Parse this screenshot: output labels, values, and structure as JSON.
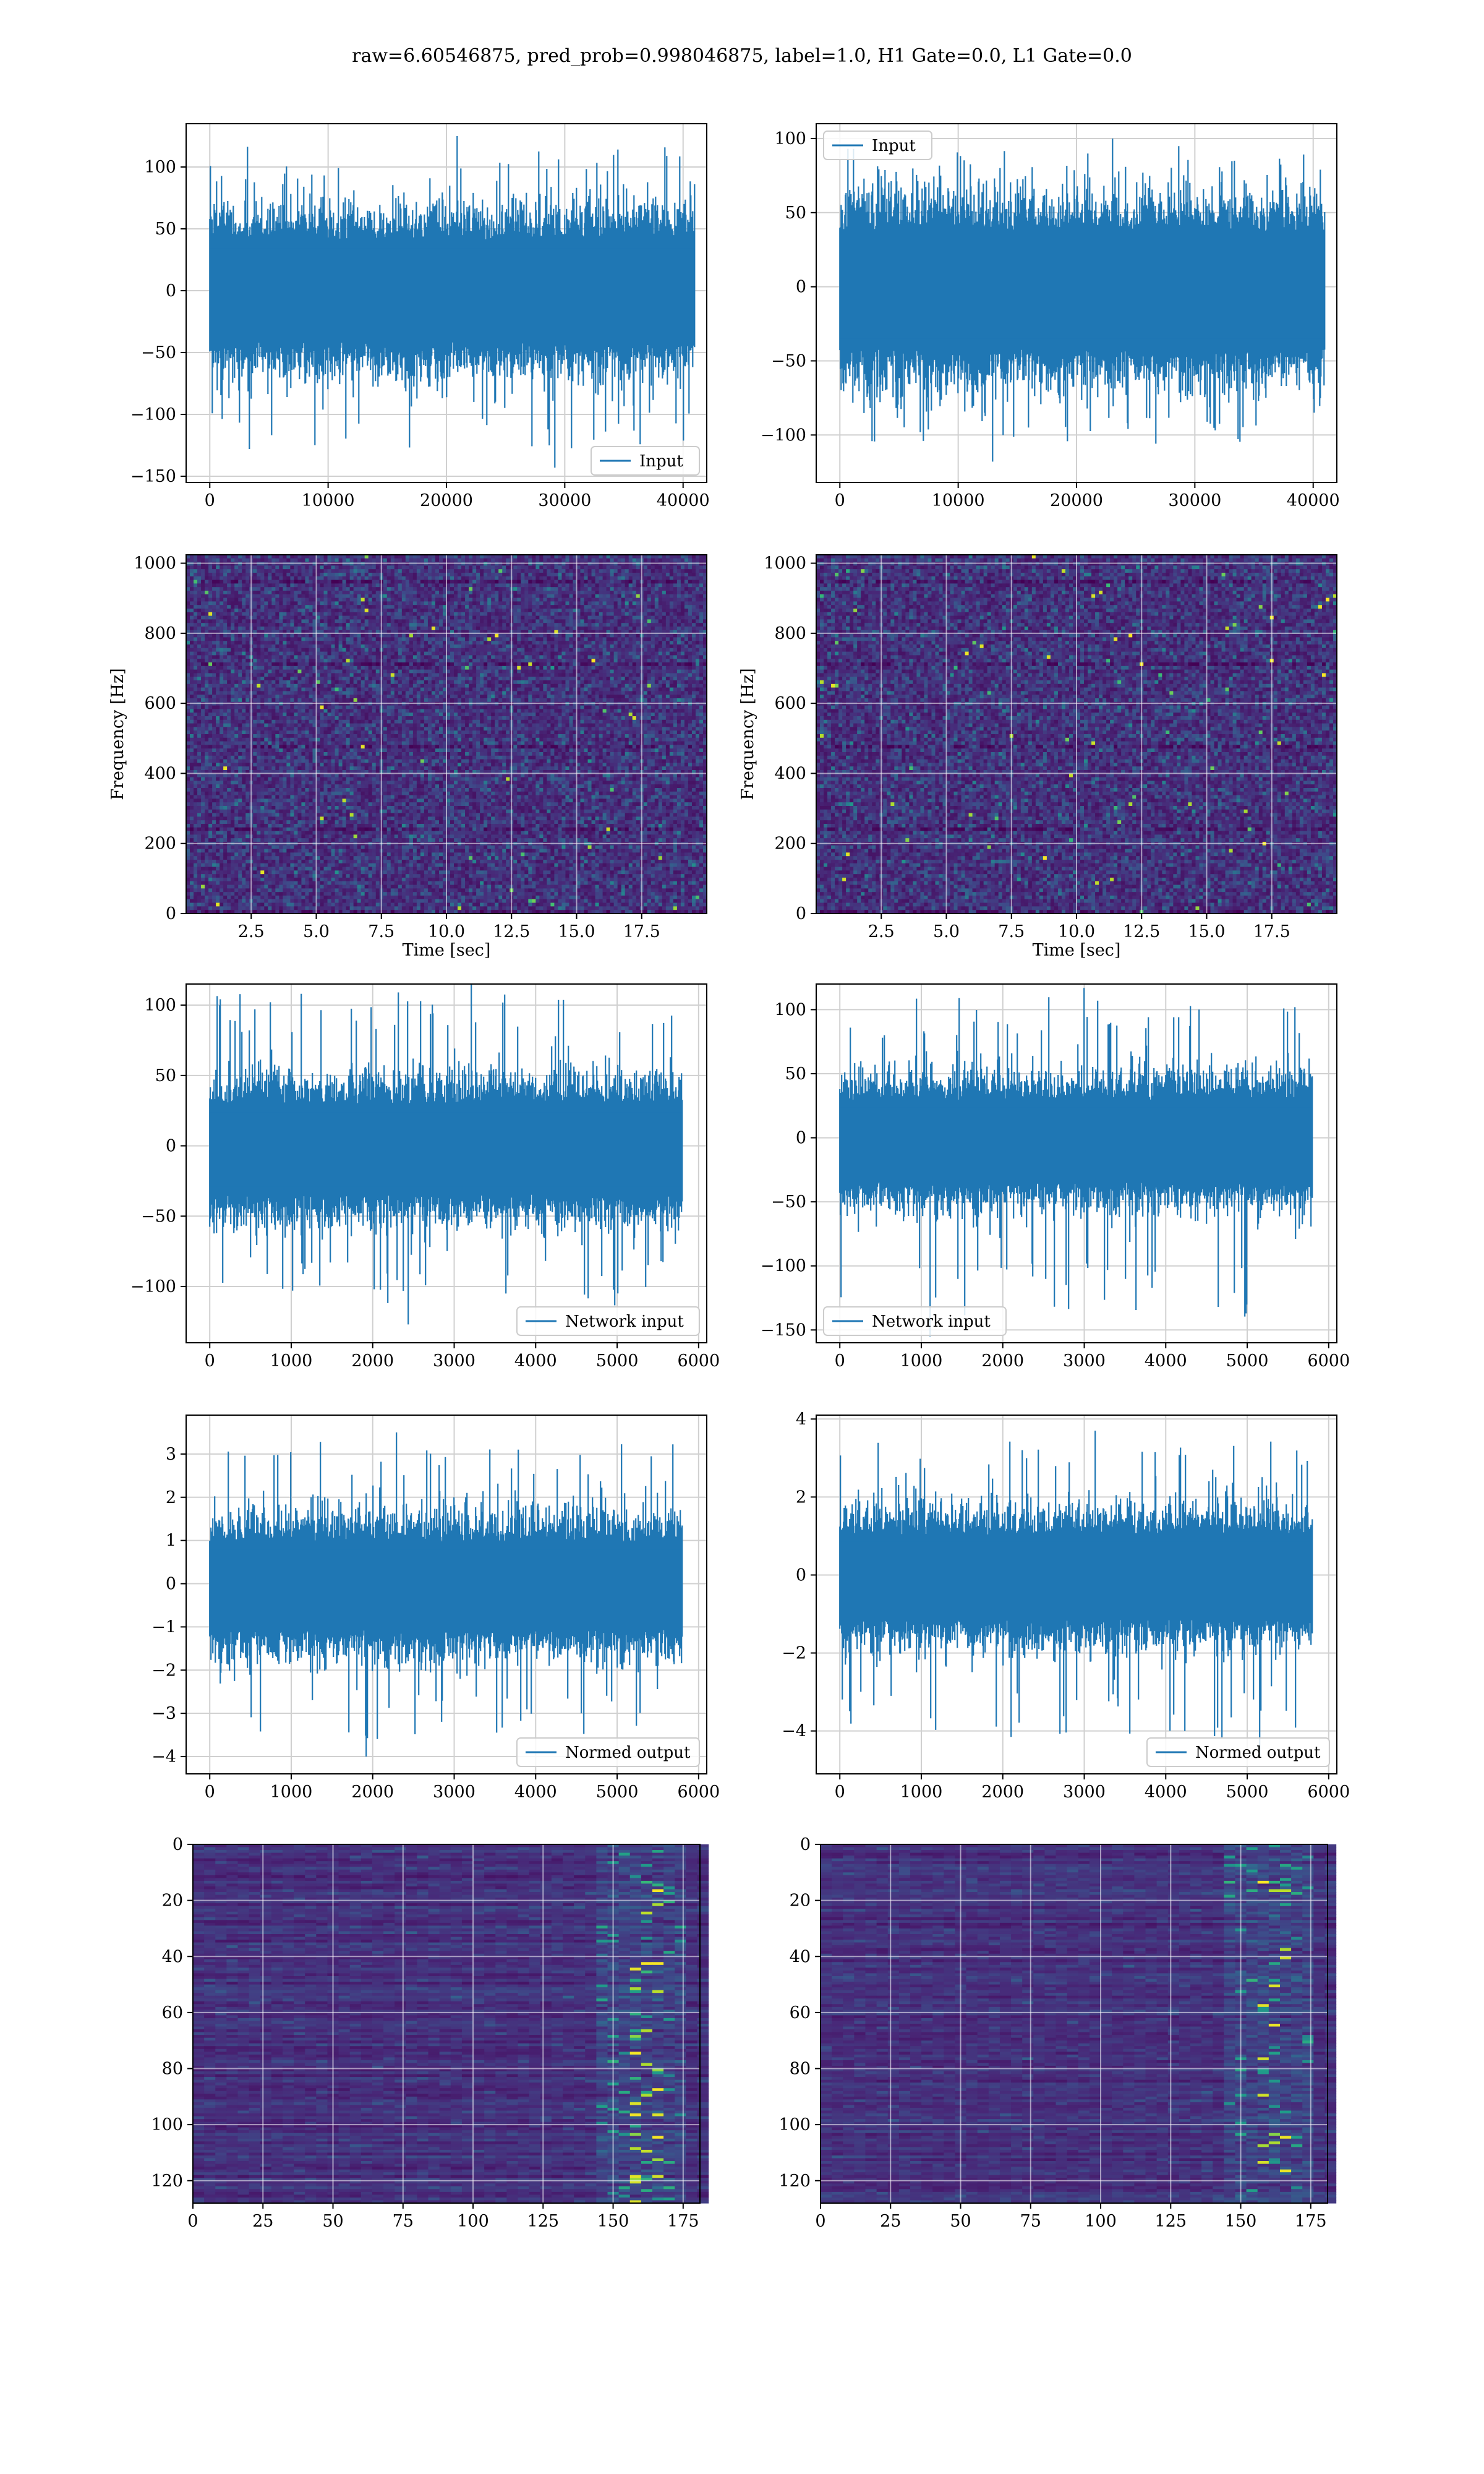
{
  "figure": {
    "suptitle": "raw=6.60546875, pred_prob=0.998046875, label=1.0, H1 Gate=0.0, L1 Gate=0.0"
  },
  "chart_data": [
    {
      "id": "p11",
      "type": "line",
      "legend": "Input",
      "legend_loc": "lower-right",
      "xlim": [
        -2000,
        42000
      ],
      "ylim": [
        -155,
        135
      ],
      "xticks": [
        0,
        10000,
        20000,
        30000,
        40000
      ],
      "yticks": [
        -150,
        -100,
        -50,
        0,
        50,
        100
      ],
      "grid": true,
      "x_range": [
        0,
        40960
      ],
      "series": [
        {
          "envelope_upper": 55,
          "envelope_lower": -55,
          "extreme_max": 125,
          "extreme_min": -143
        }
      ]
    },
    {
      "id": "p12",
      "type": "line",
      "legend": "Input",
      "legend_loc": "upper-left",
      "xlim": [
        -2000,
        42000
      ],
      "ylim": [
        -132,
        110
      ],
      "xticks": [
        0,
        10000,
        20000,
        30000,
        40000
      ],
      "yticks": [
        -100,
        -50,
        0,
        50,
        100
      ],
      "grid": true,
      "x_range": [
        0,
        40960
      ],
      "series": [
        {
          "envelope_upper": 50,
          "envelope_lower": -55,
          "extreme_max": 100,
          "extreme_min": -118
        }
      ]
    },
    {
      "id": "p21",
      "type": "heatmap",
      "xlabel": "Time [sec]",
      "ylabel": "Frequency [Hz]",
      "xlim": [
        0,
        20
      ],
      "ylim": [
        0,
        1024
      ],
      "xticks": [
        2.5,
        5.0,
        7.5,
        10.0,
        12.5,
        15.0,
        17.5
      ],
      "xticklabels": [
        "2.5",
        "5.0",
        "7.5",
        "10.0",
        "12.5",
        "15.0",
        "17.5"
      ],
      "yticks": [
        0,
        200,
        400,
        600,
        800,
        1000
      ],
      "grid": true,
      "colormap": "viridis"
    },
    {
      "id": "p22",
      "type": "heatmap",
      "xlabel": "Time [sec]",
      "ylabel": "Frequency [Hz]",
      "xlim": [
        0,
        20
      ],
      "ylim": [
        0,
        1024
      ],
      "xticks": [
        2.5,
        5.0,
        7.5,
        10.0,
        12.5,
        15.0,
        17.5
      ],
      "xticklabels": [
        "2.5",
        "5.0",
        "7.5",
        "10.0",
        "12.5",
        "15.0",
        "17.5"
      ],
      "yticks": [
        0,
        200,
        400,
        600,
        800,
        1000
      ],
      "grid": true,
      "colormap": "viridis"
    },
    {
      "id": "p31",
      "type": "line",
      "legend": "Network input",
      "legend_loc": "lower-right",
      "xlim": [
        -290,
        6100
      ],
      "ylim": [
        -140,
        115
      ],
      "xticks": [
        0,
        1000,
        2000,
        3000,
        4000,
        5000,
        6000
      ],
      "yticks": [
        -100,
        -50,
        0,
        50,
        100
      ],
      "grid": true,
      "x_range": [
        0,
        5800
      ],
      "series": [
        {
          "envelope_upper": 40,
          "envelope_lower": -45,
          "extreme_max": 115,
          "extreme_min": -127
        }
      ]
    },
    {
      "id": "p32",
      "type": "line",
      "legend": "Network input",
      "legend_loc": "lower-left",
      "xlim": [
        -290,
        6100
      ],
      "ylim": [
        -160,
        120
      ],
      "xticks": [
        0,
        1000,
        2000,
        3000,
        4000,
        5000,
        6000
      ],
      "yticks": [
        -150,
        -100,
        -50,
        0,
        50,
        100
      ],
      "grid": true,
      "x_range": [
        0,
        5800
      ],
      "series": [
        {
          "envelope_upper": 40,
          "envelope_lower": -45,
          "extreme_max": 117,
          "extreme_min": -155
        }
      ]
    },
    {
      "id": "p41",
      "type": "line",
      "legend": "Normed output",
      "legend_loc": "lower-right",
      "xlim": [
        -290,
        6100
      ],
      "ylim": [
        -4.4,
        3.9
      ],
      "xticks": [
        0,
        1000,
        2000,
        3000,
        4000,
        5000,
        6000
      ],
      "yticks": [
        -4,
        -3,
        -2,
        -1,
        0,
        1,
        2,
        3
      ],
      "grid": true,
      "x_range": [
        0,
        5800
      ],
      "series": [
        {
          "envelope_upper": 1.3,
          "envelope_lower": -1.4,
          "extreme_max": 3.5,
          "extreme_min": -4.0
        }
      ]
    },
    {
      "id": "p42",
      "type": "line",
      "legend": "Normed output",
      "legend_loc": "lower-right",
      "xlim": [
        -290,
        6100
      ],
      "ylim": [
        -5.1,
        4.1
      ],
      "xticks": [
        0,
        1000,
        2000,
        3000,
        4000,
        5000,
        6000
      ],
      "yticks": [
        -4,
        -2,
        0,
        2,
        4
      ],
      "grid": true,
      "x_range": [
        0,
        5800
      ],
      "series": [
        {
          "envelope_upper": 1.4,
          "envelope_lower": -1.5,
          "extreme_max": 3.7,
          "extreme_min": -4.7
        }
      ]
    },
    {
      "id": "p51",
      "type": "heatmap",
      "xlim": [
        0,
        181
      ],
      "ylim": [
        128,
        0
      ],
      "xticks": [
        0,
        25,
        50,
        75,
        100,
        125,
        150,
        175
      ],
      "yticks": [
        0,
        20,
        40,
        60,
        80,
        100,
        120
      ],
      "grid": true,
      "colormap": "viridis",
      "y_inverted": true
    },
    {
      "id": "p52",
      "type": "heatmap",
      "xlim": [
        0,
        181
      ],
      "ylim": [
        128,
        0
      ],
      "xticks": [
        0,
        25,
        50,
        75,
        100,
        125,
        150,
        175
      ],
      "yticks": [
        0,
        20,
        40,
        60,
        80,
        100,
        120
      ],
      "grid": true,
      "colormap": "viridis",
      "y_inverted": true
    }
  ]
}
